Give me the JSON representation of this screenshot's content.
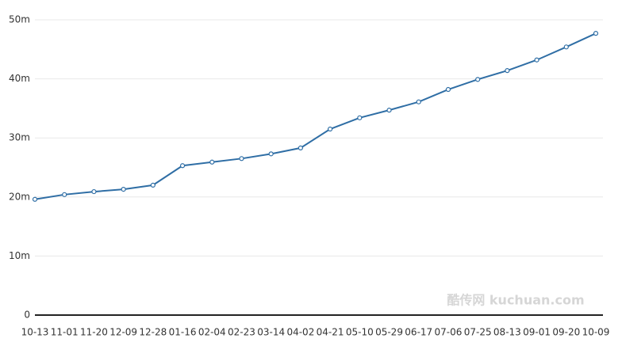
{
  "chart_data": {
    "type": "line",
    "categories": [
      "10-13",
      "11-01",
      "11-20",
      "12-09",
      "12-28",
      "01-16",
      "02-04",
      "02-23",
      "03-14",
      "04-02",
      "04-21",
      "05-10",
      "05-29",
      "06-17",
      "07-06",
      "07-25",
      "08-13",
      "09-01",
      "09-20",
      "10-09"
    ],
    "series": [
      {
        "color": "#2f6ea5",
        "values": [
          19.6,
          20.4,
          20.9,
          21.3,
          22.0,
          25.3,
          25.9,
          26.5,
          27.3,
          28.3,
          31.5,
          33.4,
          34.7,
          36.1,
          38.2,
          39.9,
          41.4,
          43.2,
          45.4,
          47.7
        ]
      }
    ],
    "ylim": [
      0,
      50
    ],
    "yticks": [
      0,
      {
        "value": 10,
        "label": "10m"
      },
      {
        "value": 20,
        "label": "20m"
      },
      {
        "value": 30,
        "label": "30m"
      },
      {
        "value": 40,
        "label": "40m"
      },
      {
        "value": 50,
        "label": "50m"
      }
    ],
    "grid": true,
    "watermark": "酷传网 kuchuan.com"
  }
}
